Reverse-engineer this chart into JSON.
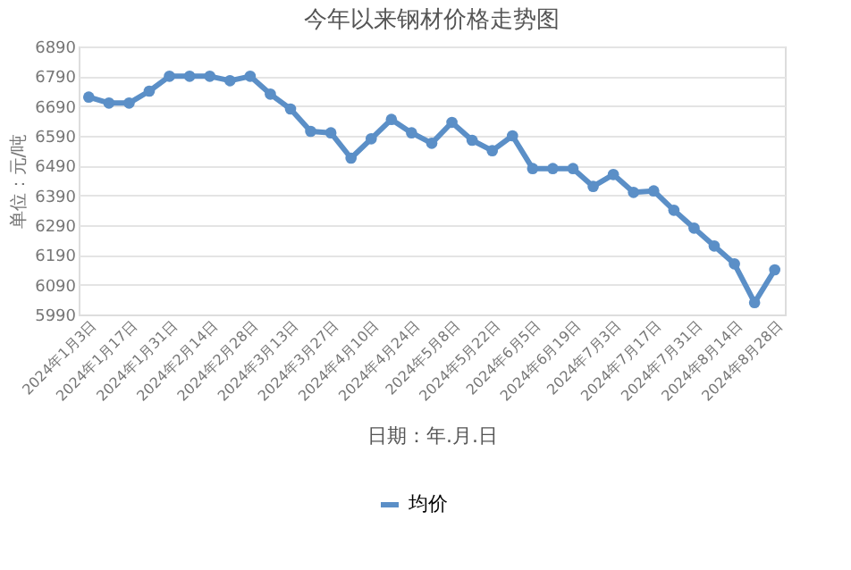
{
  "chart_data": {
    "type": "line",
    "title": "今年以来钢材价格走势图",
    "xlabel": "日期：年.月.日",
    "ylabel": "单位：元/吨",
    "categories": [
      "2024年1月3日",
      null,
      "2024年1月17日",
      null,
      "2024年1月31日",
      null,
      "2024年2月14日",
      null,
      "2024年2月28日",
      null,
      "2024年3月13日",
      null,
      "2024年3月27日",
      null,
      "2024年4月10日",
      null,
      "2024年4月24日",
      null,
      "2024年5月8日",
      null,
      "2024年5月22日",
      null,
      "2024年6月5日",
      null,
      "2024年6月19日",
      null,
      "2024年7月3日",
      null,
      "2024年7月17日",
      null,
      "2024年7月31日",
      null,
      "2024年8月14日",
      null,
      "2024年8月28日"
    ],
    "series": [
      {
        "name": "均价",
        "color": "#5b8fc7",
        "values": [
          6720,
          6700,
          6700,
          6740,
          6790,
          6790,
          6790,
          6775,
          6790,
          6730,
          6680,
          6605,
          6600,
          6515,
          6580,
          6645,
          6600,
          6565,
          6635,
          6575,
          6540,
          6590,
          6480,
          6480,
          6480,
          6420,
          6460,
          6400,
          6405,
          6340,
          6280,
          6220,
          6160,
          6030,
          6140
        ]
      }
    ],
    "ylim": [
      5990,
      6890
    ],
    "yticks": [
      5990,
      6090,
      6190,
      6290,
      6390,
      6490,
      6590,
      6690,
      6790,
      6890
    ],
    "grid": "y",
    "legend": "bottom",
    "marker": "circle",
    "line_style": "solid"
  }
}
